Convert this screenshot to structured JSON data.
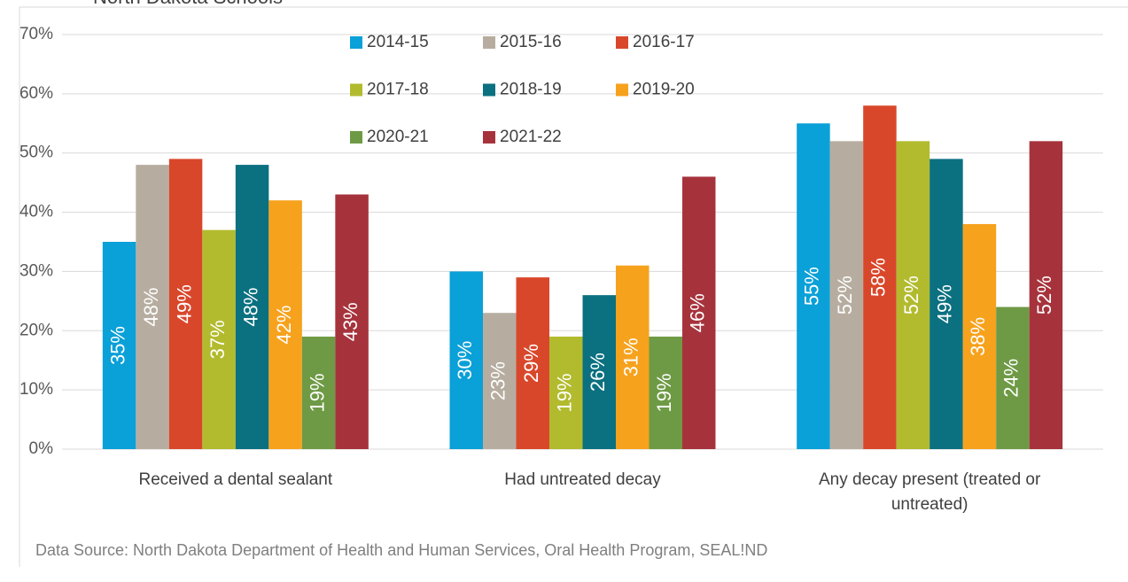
{
  "chart_data": {
    "type": "bar",
    "subtitle": "North Dakota Schools",
    "categories": [
      "Received a dental sealant",
      "Had untreated decay",
      "Any decay present (treated or untreated)"
    ],
    "series": [
      {
        "name": "2014-15",
        "color": "#0aa0d8",
        "values": [
          35,
          30,
          55
        ],
        "value_labels": [
          "35%",
          "30%",
          "55%"
        ]
      },
      {
        "name": "2015-16",
        "color": "#b6ada0",
        "values": [
          48,
          23,
          52
        ],
        "value_labels": [
          "48%",
          "23%",
          "52%"
        ]
      },
      {
        "name": "2016-17",
        "color": "#d9472b",
        "values": [
          49,
          29,
          58
        ],
        "value_labels": [
          "49%",
          "29%",
          "58%"
        ]
      },
      {
        "name": "2017-18",
        "color": "#b2bb2e",
        "values": [
          37,
          19,
          52
        ],
        "value_labels": [
          "37%",
          "19%",
          "52%"
        ]
      },
      {
        "name": "2018-19",
        "color": "#0b7080",
        "values": [
          48,
          26,
          49
        ],
        "value_labels": [
          "48%",
          "26%",
          "49%"
        ]
      },
      {
        "name": "2019-20",
        "color": "#f6a21d",
        "values": [
          42,
          31,
          38
        ],
        "value_labels": [
          "42%",
          "31%",
          "38%"
        ]
      },
      {
        "name": "2020-21",
        "color": "#6e9a45",
        "values": [
          19,
          19,
          24
        ],
        "value_labels": [
          "19%",
          "19%",
          "24%"
        ]
      },
      {
        "name": "2021-22",
        "color": "#a6333c",
        "values": [
          43,
          46,
          52
        ],
        "value_labels": [
          "43%",
          "46%",
          "52%"
        ]
      }
    ],
    "ylim": [
      0,
      70
    ],
    "yticks": [
      {
        "value": 0,
        "label": "0%"
      },
      {
        "value": 10,
        "label": "10%"
      },
      {
        "value": 20,
        "label": "20%"
      },
      {
        "value": 30,
        "label": "30%"
      },
      {
        "value": 40,
        "label": "40%"
      },
      {
        "value": 50,
        "label": "50%"
      },
      {
        "value": 60,
        "label": "60%"
      },
      {
        "value": 70,
        "label": "70%"
      }
    ],
    "grid": true,
    "legend": "top",
    "source": "Data Source: North Dakota Department of Health and Human Services, Oral Health Program, SEAL!ND"
  }
}
